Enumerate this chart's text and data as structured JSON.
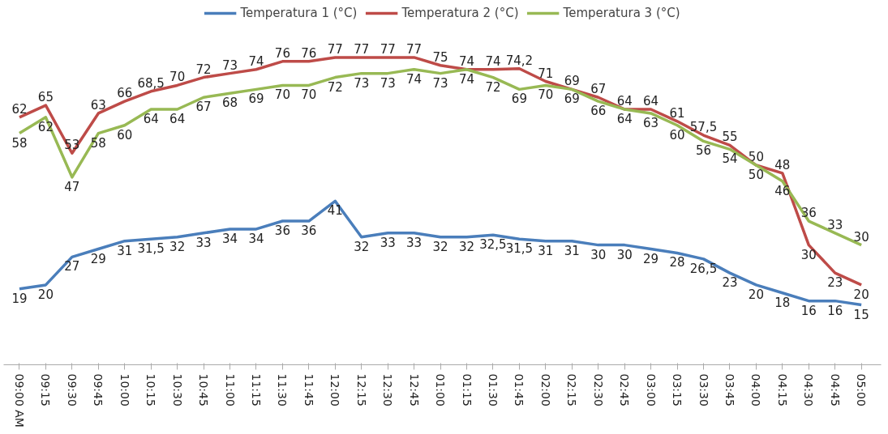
{
  "chart_data": {
    "type": "line",
    "categories": [
      "09:00 AM",
      "09:15",
      "09:30",
      "09:45",
      "10:00",
      "10:15",
      "10:30",
      "10:45",
      "11:00",
      "11:15",
      "11:30",
      "11:45",
      "12:00",
      "12:15",
      "12:30",
      "12:45",
      "01:00",
      "01:15",
      "01:30",
      "01:45",
      "02:00",
      "02:15",
      "02:30",
      "02:45",
      "03:00",
      "03:15",
      "03:30",
      "03:45",
      "04:00",
      "04:15",
      "04:30",
      "04:45",
      "05:00"
    ],
    "grid": false,
    "legend": "top",
    "marker": "none",
    "line_style": "solid",
    "tick_labels": "x",
    "series": [
      {
        "name": "Temperatura 1 (°C)",
        "color": "#4a7ebb",
        "values": [
          19,
          20,
          27,
          29,
          31,
          31.5,
          32,
          33,
          34,
          34,
          36,
          36,
          41,
          32,
          33,
          33,
          32,
          32,
          32.5,
          31.5,
          31,
          31,
          30,
          30,
          29,
          28,
          26.5,
          23,
          20,
          18,
          16,
          16,
          15
        ],
        "value_labels": [
          "19",
          "20",
          "27",
          "29",
          "31",
          "31,5",
          "32",
          "33",
          "34",
          "34",
          "36",
          "36",
          "41",
          "32",
          "33",
          "33",
          "32",
          "32",
          "32,5",
          "31,5",
          "31",
          "31",
          "30",
          "30",
          "29",
          "28",
          "26,5",
          "23",
          "20",
          "18",
          "16",
          "16",
          "15"
        ]
      },
      {
        "name": "Temperatura 2 (°C)",
        "color": "#be4b48",
        "values": [
          62,
          65,
          53,
          63,
          66,
          68.5,
          70,
          72,
          73,
          74,
          76,
          76,
          77,
          77,
          77,
          77,
          75,
          74,
          74,
          74.2,
          71,
          69,
          67,
          64,
          64,
          61,
          57.5,
          55,
          50,
          48,
          30,
          23,
          20
        ],
        "value_labels": [
          "62",
          "65",
          "53",
          "63",
          "66",
          "68,5",
          "70",
          "72",
          "73",
          "74",
          "76",
          "76",
          "77",
          "77",
          "77",
          "77",
          "75",
          "74",
          "74",
          "74,2",
          "71",
          "69",
          "67",
          "64",
          "64",
          "61",
          "57,5",
          "55",
          "50",
          "48",
          "30",
          "23",
          "20"
        ]
      },
      {
        "name": "Temperatura 3 (°C)",
        "color": "#98b954",
        "values": [
          58,
          62,
          47,
          58,
          60,
          64,
          64,
          67,
          68,
          69,
          70,
          70,
          72,
          73,
          73,
          74,
          73,
          74,
          72,
          69,
          70,
          69,
          66,
          64,
          63,
          60,
          56,
          54,
          50,
          46,
          36,
          33,
          30
        ],
        "value_labels": [
          "58",
          "62",
          "47",
          "58",
          "60",
          "64",
          "64",
          "67",
          "68",
          "69",
          "70",
          "70",
          "72",
          "73",
          "73",
          "74",
          "73",
          "74",
          "72",
          "69",
          "70",
          "69",
          "66",
          "64",
          "63",
          "60",
          "56",
          "54",
          "50",
          "46",
          "36",
          "33",
          "30"
        ]
      }
    ]
  }
}
